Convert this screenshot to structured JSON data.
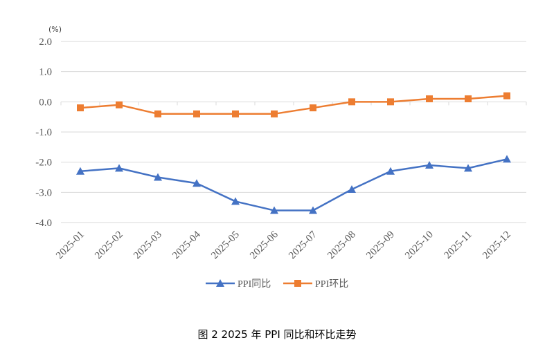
{
  "chart_data": {
    "type": "line",
    "title": "",
    "unit_label": "(%)",
    "categories": [
      "2025-01",
      "2025-02",
      "2025-03",
      "2025-04",
      "2025-05",
      "2025-06",
      "2025-07",
      "2025-08",
      "2025-09",
      "2025-10",
      "2025-11",
      "2025-12"
    ],
    "ylim": [
      -4.0,
      2.0
    ],
    "yticks": [
      "2.0",
      "1.0",
      "0.0",
      "-1.0",
      "-2.0",
      "-3.0",
      "-4.0"
    ],
    "grid": true,
    "legend_position": "bottom",
    "series": [
      {
        "name": "PPI同比",
        "color": "#4472C4",
        "marker": "triangle",
        "values": [
          -2.3,
          -2.2,
          -2.5,
          -2.7,
          -3.3,
          -3.6,
          -3.6,
          -2.9,
          -2.3,
          -2.1,
          -2.2,
          -1.9
        ]
      },
      {
        "name": "PPI环比",
        "color": "#ED7D31",
        "marker": "square",
        "values": [
          -0.2,
          -0.1,
          -0.4,
          -0.4,
          -0.4,
          -0.4,
          -0.2,
          0.0,
          0.0,
          0.1,
          0.1,
          0.2
        ]
      }
    ]
  },
  "caption": "图 2   2025 年 PPI 同比和环比走势"
}
